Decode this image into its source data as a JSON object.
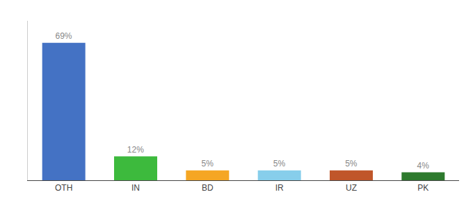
{
  "chart_data": {
    "type": "bar",
    "categories": [
      "OTH",
      "IN",
      "BD",
      "IR",
      "UZ",
      "PK"
    ],
    "values": [
      69,
      12,
      5,
      5,
      5,
      4
    ],
    "value_labels": [
      "69%",
      "12%",
      "5%",
      "5%",
      "5%",
      "4%"
    ],
    "colors": [
      "#4472c4",
      "#3dba3d",
      "#f5a623",
      "#87ceeb",
      "#c0562a",
      "#2d7a2d"
    ],
    "data_labels": true,
    "ylim": [
      0,
      80
    ],
    "grid": false,
    "tick_labels": "x"
  }
}
